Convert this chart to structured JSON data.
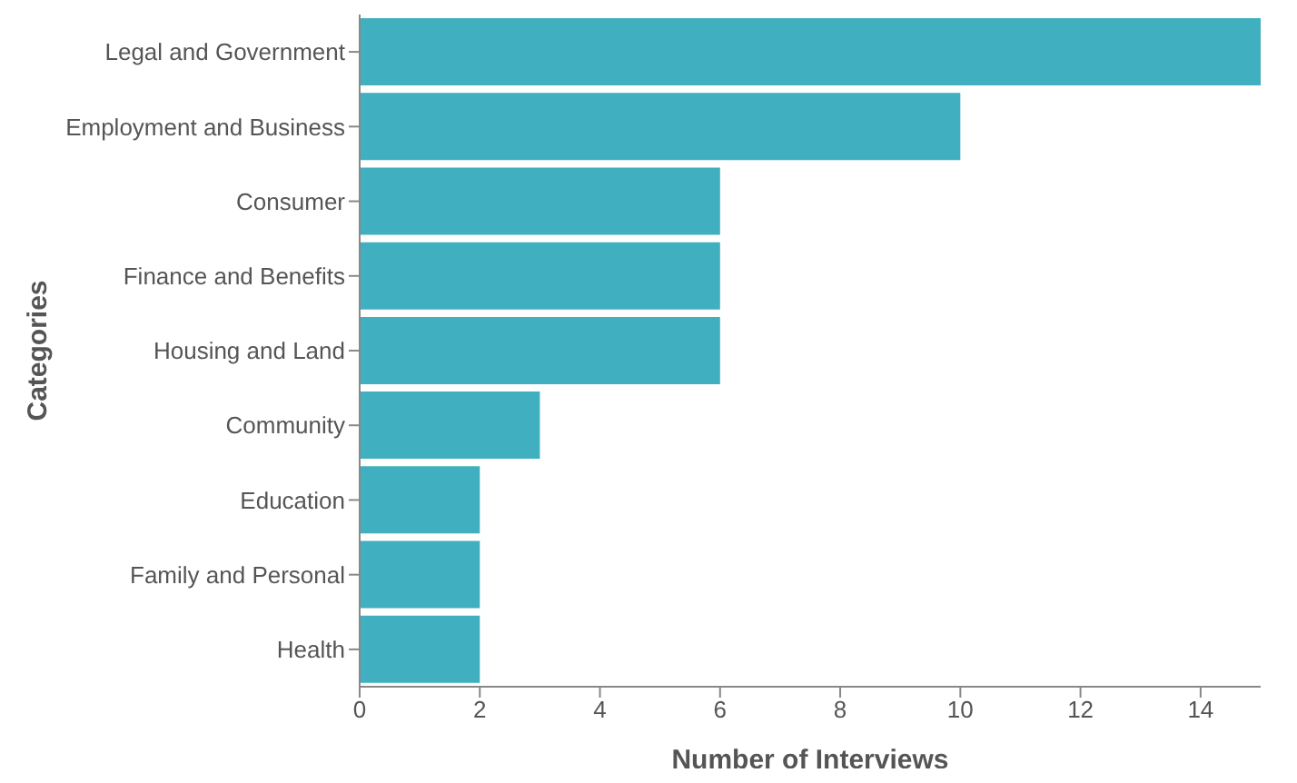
{
  "chart_data": {
    "type": "bar",
    "orientation": "horizontal",
    "xlabel": "Number of Interviews",
    "ylabel": "Categories",
    "categories": [
      "Legal and Government",
      "Employment and Business",
      "Consumer",
      "Finance and Benefits",
      "Housing and Land",
      "Community",
      "Education",
      "Family and Personal",
      "Health"
    ],
    "values": [
      15,
      10,
      6,
      6,
      6,
      3,
      2,
      2,
      2
    ],
    "color": "#40afc0",
    "xlim": [
      0,
      15
    ],
    "xticks": [
      0,
      2,
      4,
      6,
      8,
      10,
      12,
      14
    ],
    "grid": false
  }
}
